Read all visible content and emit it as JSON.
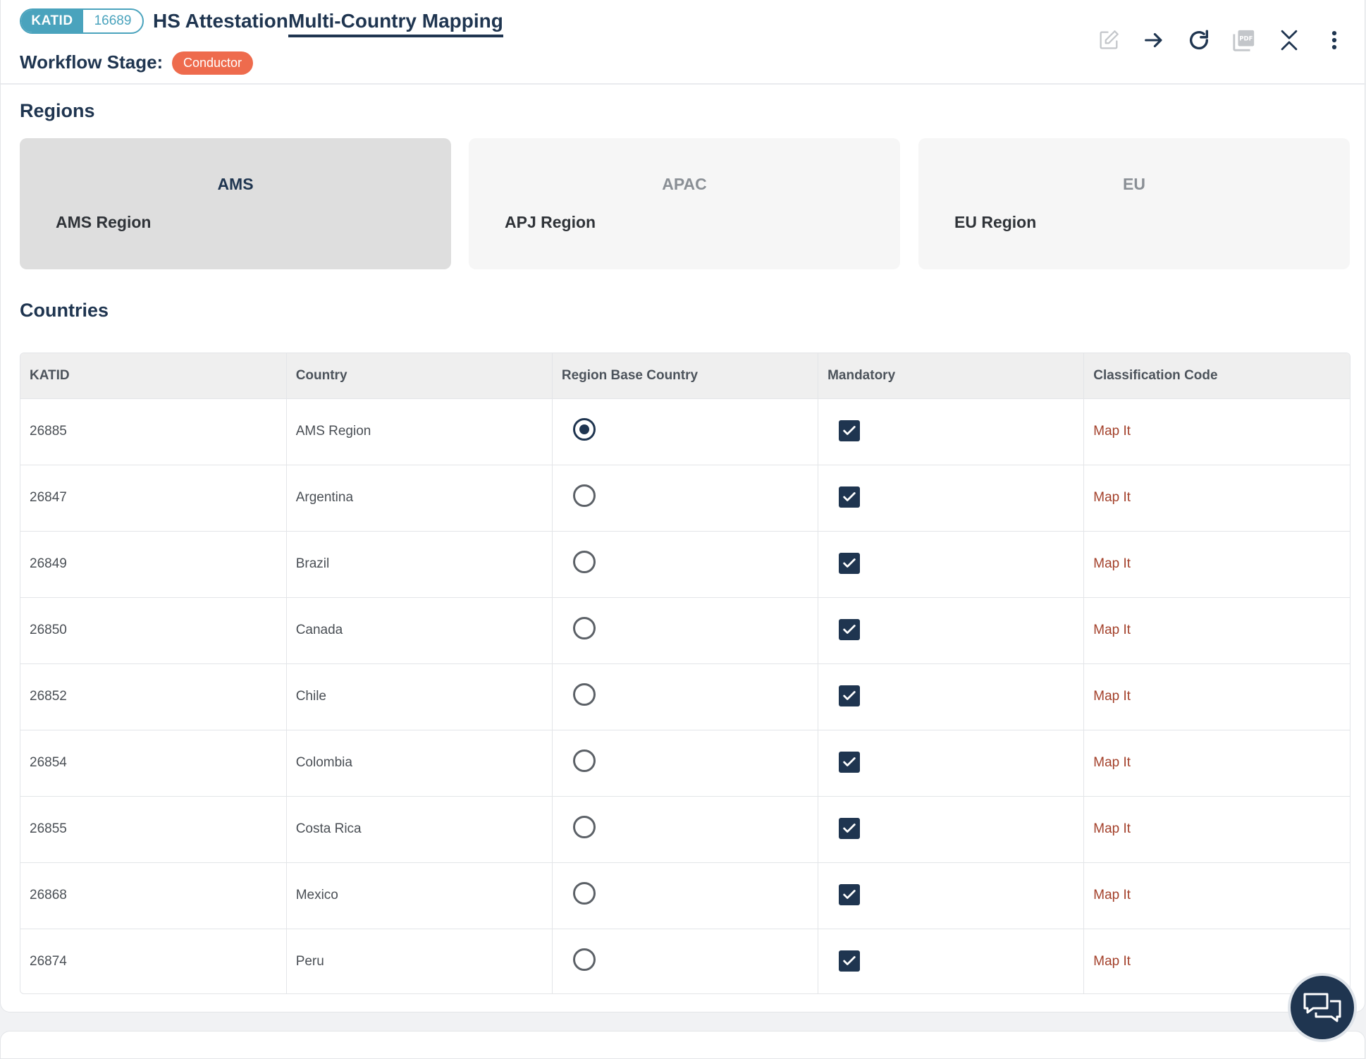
{
  "header": {
    "katid_label": "KATID",
    "katid_value": "16689",
    "title": "HS Attestation",
    "subtitle": "Multi-Country Mapping",
    "workflow_label": "Workflow Stage:",
    "workflow_stage": "Conductor"
  },
  "toolbar": [
    "edit-icon",
    "arrow-right-icon",
    "refresh-icon",
    "pdf-icon",
    "collapse-icon",
    "more-vertical-icon"
  ],
  "regions": {
    "title": "Regions",
    "items": [
      {
        "code": "AMS",
        "name": "AMS Region",
        "selected": true
      },
      {
        "code": "APAC",
        "name": "APJ Region",
        "selected": false
      },
      {
        "code": "EU",
        "name": "EU Region",
        "selected": false
      }
    ]
  },
  "countries": {
    "title": "Countries",
    "columns": [
      "KATID",
      "Country",
      "Region Base Country",
      "Mandatory",
      "Classification Code"
    ],
    "rows": [
      {
        "katid": "26885",
        "country": "AMS Region",
        "base": true,
        "mandatory": true,
        "action": "Map It"
      },
      {
        "katid": "26847",
        "country": "Argentina",
        "base": false,
        "mandatory": true,
        "action": "Map It"
      },
      {
        "katid": "26849",
        "country": "Brazil",
        "base": false,
        "mandatory": true,
        "action": "Map It"
      },
      {
        "katid": "26850",
        "country": "Canada",
        "base": false,
        "mandatory": true,
        "action": "Map It"
      },
      {
        "katid": "26852",
        "country": "Chile",
        "base": false,
        "mandatory": true,
        "action": "Map It"
      },
      {
        "katid": "26854",
        "country": "Colombia",
        "base": false,
        "mandatory": true,
        "action": "Map It"
      },
      {
        "katid": "26855",
        "country": "Costa Rica",
        "base": false,
        "mandatory": true,
        "action": "Map It"
      },
      {
        "katid": "26868",
        "country": "Mexico",
        "base": false,
        "mandatory": true,
        "action": "Map It"
      },
      {
        "katid": "26874",
        "country": "Peru",
        "base": false,
        "mandatory": true,
        "action": "Map It"
      }
    ]
  },
  "colors": {
    "primary": "#1f3550",
    "accent": "#4aa3bd",
    "stage": "#ee6b4d",
    "link": "#a3402a"
  }
}
